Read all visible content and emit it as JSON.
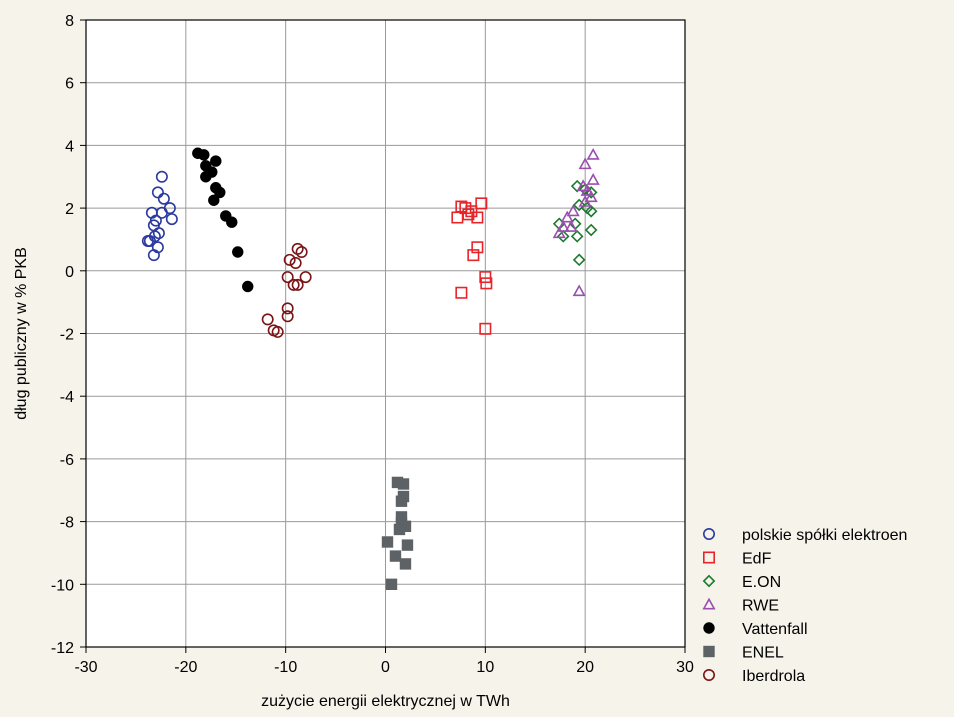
{
  "chart_data": {
    "type": "scatter",
    "xlabel": "zużycie energii elektrycznej w TWh",
    "ylabel": "dług publiczny w % PKB",
    "xlim": [
      -30,
      30
    ],
    "ylim": [
      -12,
      8
    ],
    "xticks": [
      -30,
      -20,
      -10,
      0,
      10,
      20,
      30
    ],
    "yticks": [
      -12,
      -10,
      -8,
      -6,
      -4,
      -2,
      0,
      2,
      4,
      6,
      8
    ],
    "grid": true,
    "legend_position": "bottom-right",
    "series": [
      {
        "name": "polskie spółki elektroen",
        "marker": "circle-open",
        "color": "#2b3a9e",
        "points": [
          [
            -22.4,
            3.0
          ],
          [
            -22.8,
            2.5
          ],
          [
            -22.2,
            2.3
          ],
          [
            -21.6,
            2.0
          ],
          [
            -23.4,
            1.85
          ],
          [
            -22.4,
            1.85
          ],
          [
            -21.4,
            1.65
          ],
          [
            -23.0,
            1.6
          ],
          [
            -23.2,
            1.45
          ],
          [
            -22.7,
            1.2
          ],
          [
            -23.1,
            1.1
          ],
          [
            -23.8,
            0.95
          ],
          [
            -23.6,
            0.95
          ],
          [
            -22.8,
            0.75
          ],
          [
            -23.2,
            0.5
          ]
        ]
      },
      {
        "name": "EdF",
        "marker": "square-open",
        "color": "#e8242b",
        "points": [
          [
            7.6,
            2.05
          ],
          [
            8.0,
            2.0
          ],
          [
            8.3,
            1.8
          ],
          [
            8.6,
            1.9
          ],
          [
            9.6,
            2.15
          ],
          [
            7.2,
            1.7
          ],
          [
            9.2,
            1.7
          ],
          [
            9.2,
            0.75
          ],
          [
            8.8,
            0.5
          ],
          [
            10.0,
            -0.2
          ],
          [
            10.1,
            -0.4
          ],
          [
            7.6,
            -0.7
          ],
          [
            10.0,
            -1.85
          ]
        ]
      },
      {
        "name": "E.ON",
        "marker": "diamond-open",
        "color": "#1e7a2e",
        "points": [
          [
            19.2,
            2.7
          ],
          [
            20.0,
            2.6
          ],
          [
            20.6,
            2.5
          ],
          [
            19.4,
            2.1
          ],
          [
            20.2,
            2.0
          ],
          [
            20.6,
            1.9
          ],
          [
            17.4,
            1.5
          ],
          [
            19.0,
            1.5
          ],
          [
            20.6,
            1.3
          ],
          [
            17.8,
            1.1
          ],
          [
            19.2,
            1.1
          ],
          [
            19.4,
            0.35
          ]
        ]
      },
      {
        "name": "RWE",
        "marker": "triangle-open",
        "color": "#9a4eb0",
        "points": [
          [
            20.8,
            3.7
          ],
          [
            20.0,
            3.4
          ],
          [
            20.8,
            2.9
          ],
          [
            19.8,
            2.7
          ],
          [
            20.2,
            2.55
          ],
          [
            20.6,
            2.35
          ],
          [
            20.0,
            2.2
          ],
          [
            18.8,
            1.9
          ],
          [
            18.2,
            1.7
          ],
          [
            17.8,
            1.4
          ],
          [
            18.6,
            1.4
          ],
          [
            17.4,
            1.2
          ],
          [
            19.4,
            -0.65
          ]
        ]
      },
      {
        "name": "Vattenfall",
        "marker": "circle-filled",
        "color": "#000000",
        "points": [
          [
            -18.8,
            3.75
          ],
          [
            -18.2,
            3.7
          ],
          [
            -17.0,
            3.5
          ],
          [
            -18.0,
            3.35
          ],
          [
            -17.4,
            3.15
          ],
          [
            -18.0,
            3.0
          ],
          [
            -17.0,
            2.65
          ],
          [
            -16.6,
            2.5
          ],
          [
            -17.2,
            2.25
          ],
          [
            -16.0,
            1.75
          ],
          [
            -15.4,
            1.55
          ],
          [
            -14.8,
            0.6
          ],
          [
            -13.8,
            -0.5
          ]
        ]
      },
      {
        "name": "ENEL",
        "marker": "square-filled",
        "color": "#5c6266",
        "points": [
          [
            1.2,
            -6.75
          ],
          [
            1.8,
            -6.8
          ],
          [
            1.8,
            -7.2
          ],
          [
            1.6,
            -7.35
          ],
          [
            1.6,
            -7.85
          ],
          [
            1.6,
            -8.05
          ],
          [
            2.0,
            -8.15
          ],
          [
            1.4,
            -8.25
          ],
          [
            0.2,
            -8.65
          ],
          [
            2.2,
            -8.75
          ],
          [
            1.0,
            -9.1
          ],
          [
            2.0,
            -9.35
          ],
          [
            0.6,
            -10.0
          ]
        ]
      },
      {
        "name": "Iberdrola",
        "marker": "circle-open",
        "color": "#7a1416",
        "points": [
          [
            -8.8,
            0.7
          ],
          [
            -8.4,
            0.6
          ],
          [
            -9.6,
            0.35
          ],
          [
            -9.0,
            0.25
          ],
          [
            -9.8,
            -0.2
          ],
          [
            -8.0,
            -0.2
          ],
          [
            -9.2,
            -0.45
          ],
          [
            -8.8,
            -0.45
          ],
          [
            -9.8,
            -1.2
          ],
          [
            -9.8,
            -1.45
          ],
          [
            -11.8,
            -1.55
          ],
          [
            -11.2,
            -1.9
          ],
          [
            -10.8,
            -1.95
          ]
        ]
      }
    ]
  }
}
